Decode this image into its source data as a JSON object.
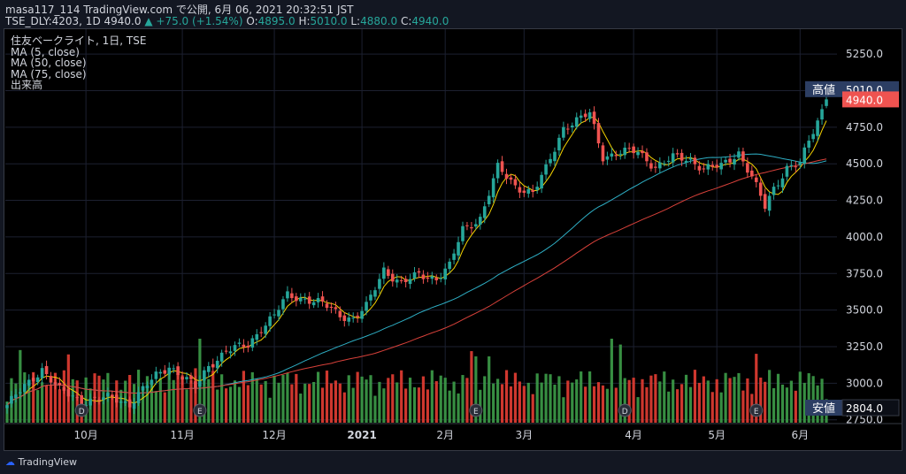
{
  "header": {
    "line1": "masa117_114 TradingView.com で公開, 6月 06, 2021 20:32:51 JST",
    "symbol": "TSE_DLY:4203, 1D 4940.0",
    "change": "+75.0 (+1.54%)",
    "o_label": "O:",
    "o_value": "4895.0",
    "h_label": "H:",
    "h_value": "5010.0",
    "l_label": "L:",
    "l_value": "4880.0",
    "c_label": "C:",
    "c_value": "4940.0"
  },
  "legend": {
    "title": "住友ベークライト, 1日, TSE",
    "ma5": "MA (5, close)",
    "ma50": "MA (50, close)",
    "ma75": "MA (75, close)",
    "volume": "出来高"
  },
  "footer": {
    "brand": "TradingView"
  },
  "colors": {
    "up": "#26a69a",
    "down": "#ef5350",
    "vol_up": "#3c9a48",
    "vol_down": "#e03c32",
    "ma5": "#f5d300",
    "ma50": "#2eaec4",
    "ma75": "#d8413a",
    "high_tag": "#2c3e63",
    "last_tag": "#ef5350"
  },
  "chart_data": {
    "type": "candlestick",
    "title": "住友ベークライト, 1日, TSE",
    "y_ticks": [
      "5250.0",
      "5000.0",
      "4750.0",
      "4500.0",
      "4250.0",
      "4000.0",
      "3750.0",
      "3500.0",
      "3250.0",
      "3000.0",
      "2750.0"
    ],
    "ylim": [
      2730,
      5420
    ],
    "x_ticks": [
      "10月",
      "11月",
      "12月",
      "2021",
      "2月",
      "3月",
      "4月",
      "5月",
      "6月"
    ],
    "x_tick_index": [
      18,
      40,
      61,
      81,
      100,
      118,
      143,
      162,
      181
    ],
    "n_bars": 188,
    "annotations": {
      "high_label": "高値",
      "high_value": "5010.0",
      "low_label": "安値",
      "low_value": "2804.0",
      "last_value": "4940.0"
    },
    "events": [
      {
        "label": "D",
        "index": 17
      },
      {
        "label": "E",
        "index": 44
      },
      {
        "label": "E",
        "index": 107
      },
      {
        "label": "D",
        "index": 141
      },
      {
        "label": "E",
        "index": 171
      }
    ],
    "anchors": [
      [
        0,
        2850
      ],
      [
        8,
        3100
      ],
      [
        12,
        2950
      ],
      [
        17,
        2880
      ],
      [
        24,
        2900
      ],
      [
        28,
        2860
      ],
      [
        34,
        3050
      ],
      [
        37,
        3120
      ],
      [
        43,
        2970
      ],
      [
        46,
        3120
      ],
      [
        50,
        3220
      ],
      [
        55,
        3260
      ],
      [
        58,
        3380
      ],
      [
        61,
        3460
      ],
      [
        64,
        3600
      ],
      [
        68,
        3580
      ],
      [
        72,
        3540
      ],
      [
        76,
        3470
      ],
      [
        79,
        3440
      ],
      [
        82,
        3520
      ],
      [
        86,
        3780
      ],
      [
        90,
        3680
      ],
      [
        94,
        3740
      ],
      [
        98,
        3720
      ],
      [
        101,
        3800
      ],
      [
        104,
        4050
      ],
      [
        108,
        4130
      ],
      [
        112,
        4470
      ],
      [
        116,
        4350
      ],
      [
        120,
        4300
      ],
      [
        123,
        4460
      ],
      [
        127,
        4750
      ],
      [
        133,
        4840
      ],
      [
        136,
        4550
      ],
      [
        140,
        4580
      ],
      [
        144,
        4580
      ],
      [
        148,
        4480
      ],
      [
        152,
        4540
      ],
      [
        156,
        4530
      ],
      [
        159,
        4470
      ],
      [
        163,
        4480
      ],
      [
        167,
        4580
      ],
      [
        170,
        4410
      ],
      [
        173,
        4200
      ],
      [
        175,
        4330
      ],
      [
        178,
        4480
      ],
      [
        181,
        4500
      ],
      [
        184,
        4720
      ],
      [
        187,
        4940
      ]
    ],
    "volume_max_label": "",
    "ma_series": [
      "MA (5, close)",
      "MA (50, close)",
      "MA (75, close)"
    ]
  }
}
